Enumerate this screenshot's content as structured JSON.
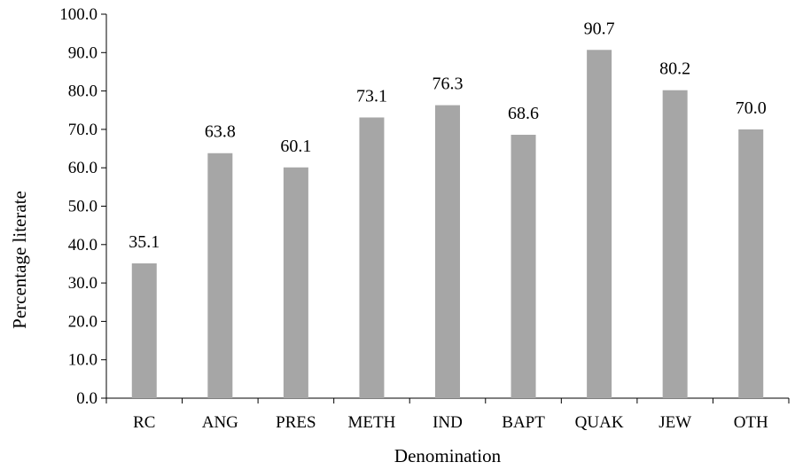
{
  "chart_data": {
    "type": "bar",
    "title": "",
    "xlabel": "Denomination",
    "ylabel": "Percentage literate",
    "categories": [
      "RC",
      "ANG",
      "PRES",
      "METH",
      "IND",
      "BAPT",
      "QUAK",
      "JEW",
      "OTH"
    ],
    "values": [
      35.1,
      63.8,
      60.1,
      73.1,
      76.3,
      68.6,
      90.7,
      80.2,
      70.0
    ],
    "data_labels": [
      "35.1",
      "63.8",
      "60.1",
      "73.1",
      "76.3",
      "68.6",
      "90.7",
      "80.2",
      "70.0"
    ],
    "ylim": [
      0,
      100
    ],
    "yticks": [
      0,
      10,
      20,
      30,
      40,
      50,
      60,
      70,
      80,
      90,
      100
    ],
    "ytick_labels": [
      "0.0",
      "10.0",
      "20.0",
      "30.0",
      "40.0",
      "50.0",
      "60.0",
      "70.0",
      "80.0",
      "90.0",
      "100.0"
    ],
    "grid": false,
    "legend": "none",
    "bar_color": "#a6a6a6",
    "axis_color": "#000000"
  }
}
